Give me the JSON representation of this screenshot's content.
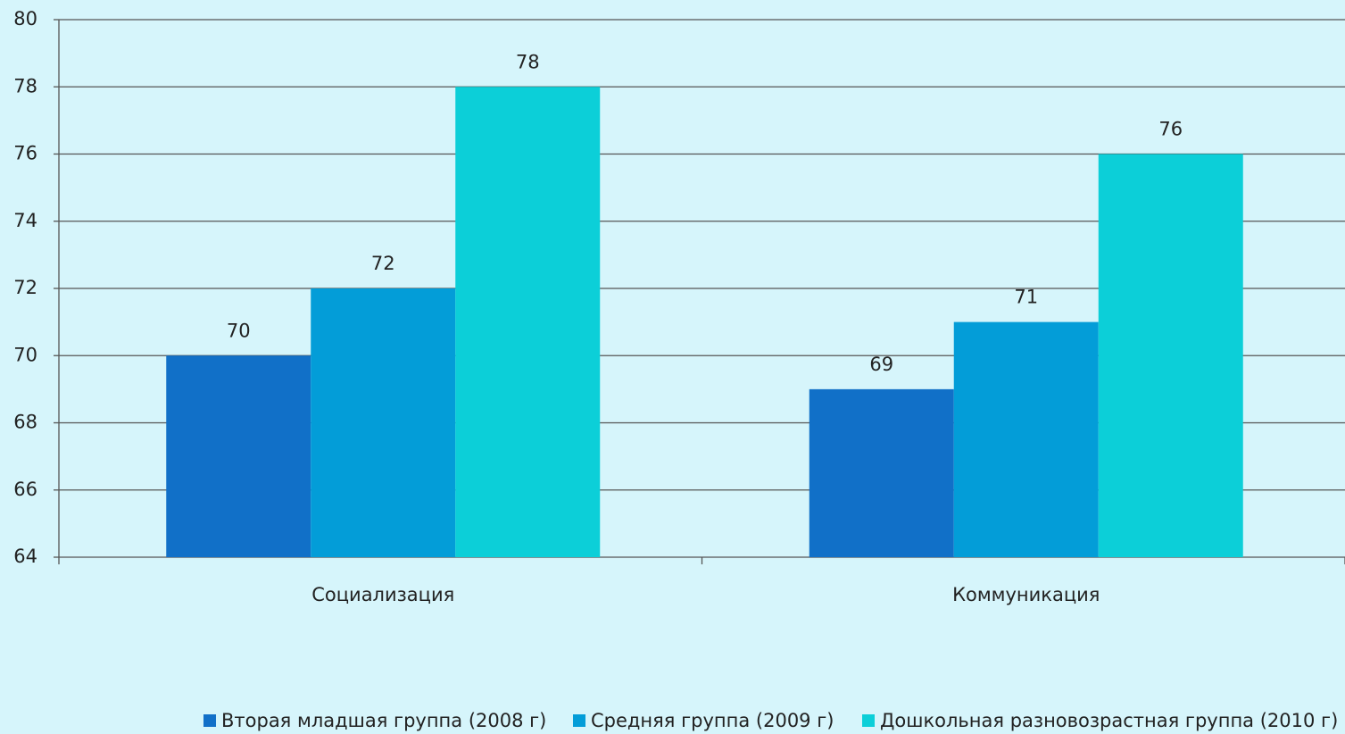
{
  "chart_data": {
    "type": "bar",
    "categories": [
      "Социализация",
      "Коммуникация"
    ],
    "series": [
      {
        "name": "Вторая младшая группа (2008 г)",
        "color": "#1170c8",
        "values": [
          70,
          69
        ]
      },
      {
        "name": "Средняя группа (2009 г)",
        "color": "#039dd8",
        "values": [
          72,
          71
        ]
      },
      {
        "name": "Дошкольная разновозрастная группа (2010 г)",
        "color": "#0ccfd8",
        "values": [
          78,
          76
        ]
      }
    ],
    "ylim": [
      64,
      80
    ],
    "yticks": [
      64,
      66,
      68,
      70,
      72,
      74,
      76,
      78,
      80
    ],
    "grid": true,
    "legend": "bottom"
  }
}
